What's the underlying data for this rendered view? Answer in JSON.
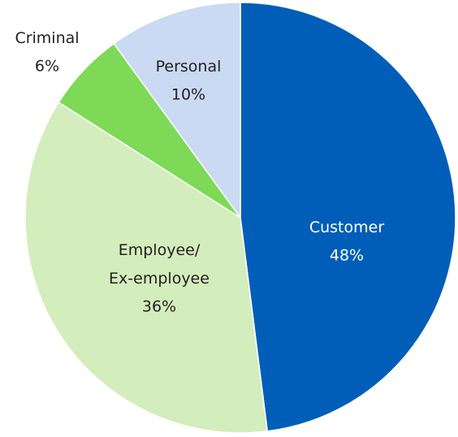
{
  "chart_data": {
    "type": "pie",
    "categories": [
      "Customer",
      "Employee/\nEx-employee",
      "Criminal",
      "Personal"
    ],
    "values": [
      48,
      36,
      6,
      10
    ],
    "value_labels": [
      "48%",
      "36%",
      "6%",
      "10%"
    ],
    "colors": [
      "#005eb8",
      "#d4edbc",
      "#7ed957",
      "#c9daf2"
    ]
  }
}
